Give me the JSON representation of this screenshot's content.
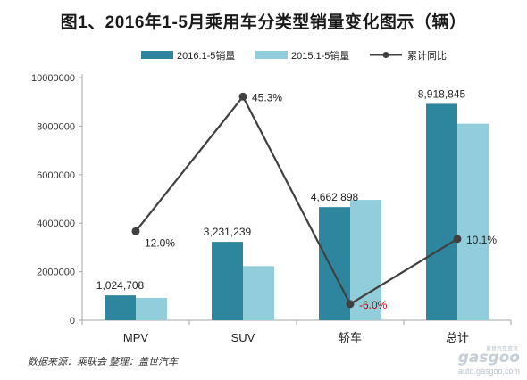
{
  "title": "图1、2016年1-5月乘用车分类型销量变化图示（辆）",
  "source": "数据来源：乘联会 整理：盖世汽车",
  "watermark": {
    "cn": "盖世汽车资讯",
    "logo": "gasgoo",
    "url": "auto.gasgoo.com"
  },
  "colors": {
    "series_2016": "#2e869e",
    "series_2015": "#92cddc",
    "line": "#404040",
    "negative_label": "#c00000"
  },
  "chart_data": {
    "type": "bar",
    "categories": [
      "MPV",
      "SUV",
      "轿车",
      "总计"
    ],
    "series": [
      {
        "name": "2016.1-5销量",
        "values": [
          1024708,
          3231239,
          4662898,
          8918845
        ],
        "data_labels": [
          "1,024,708",
          "3,231,239",
          "4,662,898",
          "8,918,845"
        ]
      },
      {
        "name": "2015.1-5销量",
        "values": [
          920000,
          2230000,
          4960000,
          8100000
        ]
      }
    ],
    "line_series": {
      "name": "累计同比",
      "values": [
        12.0,
        45.3,
        -6.0,
        10.1
      ],
      "data_labels": [
        "12.0%",
        "45.3%",
        "-6.0%",
        "10.1%"
      ]
    },
    "ylim": [
      0,
      10000000
    ],
    "yticks": [
      0,
      2000000,
      4000000,
      6000000,
      8000000,
      10000000
    ],
    "ytick_labels": [
      "0",
      "2000000",
      "4000000",
      "6000000",
      "8000000",
      "10000000"
    ],
    "line_ylim": [
      -10,
      50
    ],
    "legend_position": "top",
    "grid": false
  }
}
